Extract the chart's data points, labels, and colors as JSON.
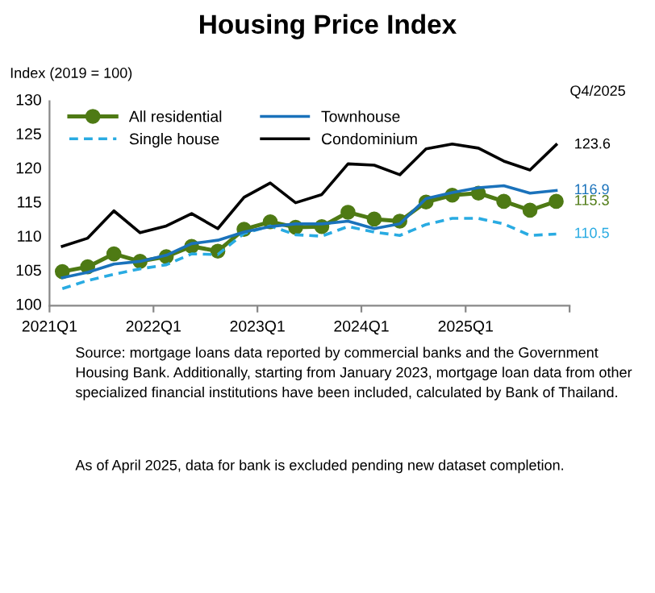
{
  "chart_data": {
    "type": "line",
    "title": "Housing Price Index",
    "ylabel": "Index (2019 = 100)",
    "x": [
      "2021-02-15",
      "2021-05-15",
      "2021-08-15",
      "2021-11-15",
      "2022-02-15",
      "2022-05-15",
      "2022-08-15",
      "2022-11-15",
      "2023-02-15",
      "2023-05-15",
      "2023-08-15",
      "2023-11-15",
      "2024-02-15",
      "2024-05-15",
      "2024-08-15",
      "2024-11-15",
      "2025-02-15",
      "2025-05-15",
      "2025-08-15",
      "2025-11-15"
    ],
    "xlim": [
      "2021-01-01",
      "2026-01-01"
    ],
    "xticks": [
      {
        "value": "2021-01-01",
        "label": "2021Q1"
      },
      {
        "value": "2022-01-01",
        "label": "2022Q1"
      },
      {
        "value": "2023-01-01",
        "label": "2023Q1"
      },
      {
        "value": "2024-01-01",
        "label": "2024Q1"
      },
      {
        "value": "2025-01-01",
        "label": "2025Q1"
      },
      {
        "value": "2026-01-01",
        "label": null
      }
    ],
    "series": [
      {
        "name": "All residential",
        "color": "#4e7a14",
        "marker": "circle",
        "line_style": "solid",
        "values": [
          105.0,
          105.7,
          107.6,
          106.5,
          107.2,
          108.7,
          108.0,
          111.2,
          112.3,
          111.5,
          111.6,
          113.7,
          112.7,
          112.4,
          115.2,
          116.2,
          116.5,
          115.3,
          114.0,
          115.3
        ],
        "value_labels": [
          null,
          null,
          null,
          null,
          null,
          null,
          null,
          null,
          null,
          null,
          null,
          null,
          null,
          null,
          null,
          null,
          null,
          null,
          null,
          "115.3"
        ]
      },
      {
        "name": "Single house",
        "color": "#29abe2",
        "marker": "none",
        "line_style": "dashed",
        "values": [
          102.5,
          103.7,
          104.6,
          105.4,
          106.0,
          107.6,
          107.5,
          110.6,
          111.7,
          110.4,
          110.2,
          111.6,
          110.8,
          110.3,
          111.9,
          112.8,
          112.8,
          112.0,
          110.3,
          110.5
        ],
        "value_labels": [
          null,
          null,
          null,
          null,
          null,
          null,
          null,
          null,
          null,
          null,
          null,
          null,
          null,
          null,
          null,
          null,
          null,
          null,
          null,
          "110.5"
        ]
      },
      {
        "name": "Townhouse",
        "color": "#1a72bb",
        "marker": "none",
        "line_style": "solid",
        "values": [
          104.1,
          104.9,
          106.1,
          106.5,
          107.4,
          109.1,
          109.6,
          110.8,
          111.6,
          112.0,
          112.0,
          112.4,
          111.3,
          112.0,
          115.7,
          116.6,
          117.3,
          117.6,
          116.5,
          116.9
        ],
        "value_labels": [
          null,
          null,
          null,
          null,
          null,
          null,
          null,
          null,
          null,
          null,
          null,
          null,
          null,
          null,
          null,
          null,
          null,
          null,
          null,
          "116.9"
        ]
      },
      {
        "name": "Condominium",
        "color": "#000000",
        "marker": "none",
        "line_style": "solid",
        "values": [
          108.7,
          109.9,
          113.9,
          110.7,
          111.7,
          113.5,
          111.3,
          115.9,
          118.0,
          115.1,
          116.3,
          120.8,
          120.6,
          119.2,
          123.0,
          123.7,
          123.1,
          121.2,
          119.9,
          123.6
        ],
        "value_labels": [
          null,
          null,
          null,
          null,
          null,
          null,
          null,
          null,
          null,
          null,
          null,
          null,
          null,
          null,
          null,
          null,
          null,
          null,
          null,
          "123.6"
        ]
      }
    ],
    "ylim": [
      100,
      130
    ],
    "yticks": [
      100,
      105,
      110,
      115,
      120,
      125,
      130
    ],
    "grid": false,
    "legend": "top",
    "annotations": [
      "Q4/2025",
      "Source: mortgage loans data reported by commercial banks and the Government Housing Bank. Additionally, starting from January 2023, mortgage loan data from other specialized financial institutions have been included, calculated by Bank of Thailand.",
      "As of April 2025, data for bank is excluded pending new dataset completion."
    ]
  }
}
